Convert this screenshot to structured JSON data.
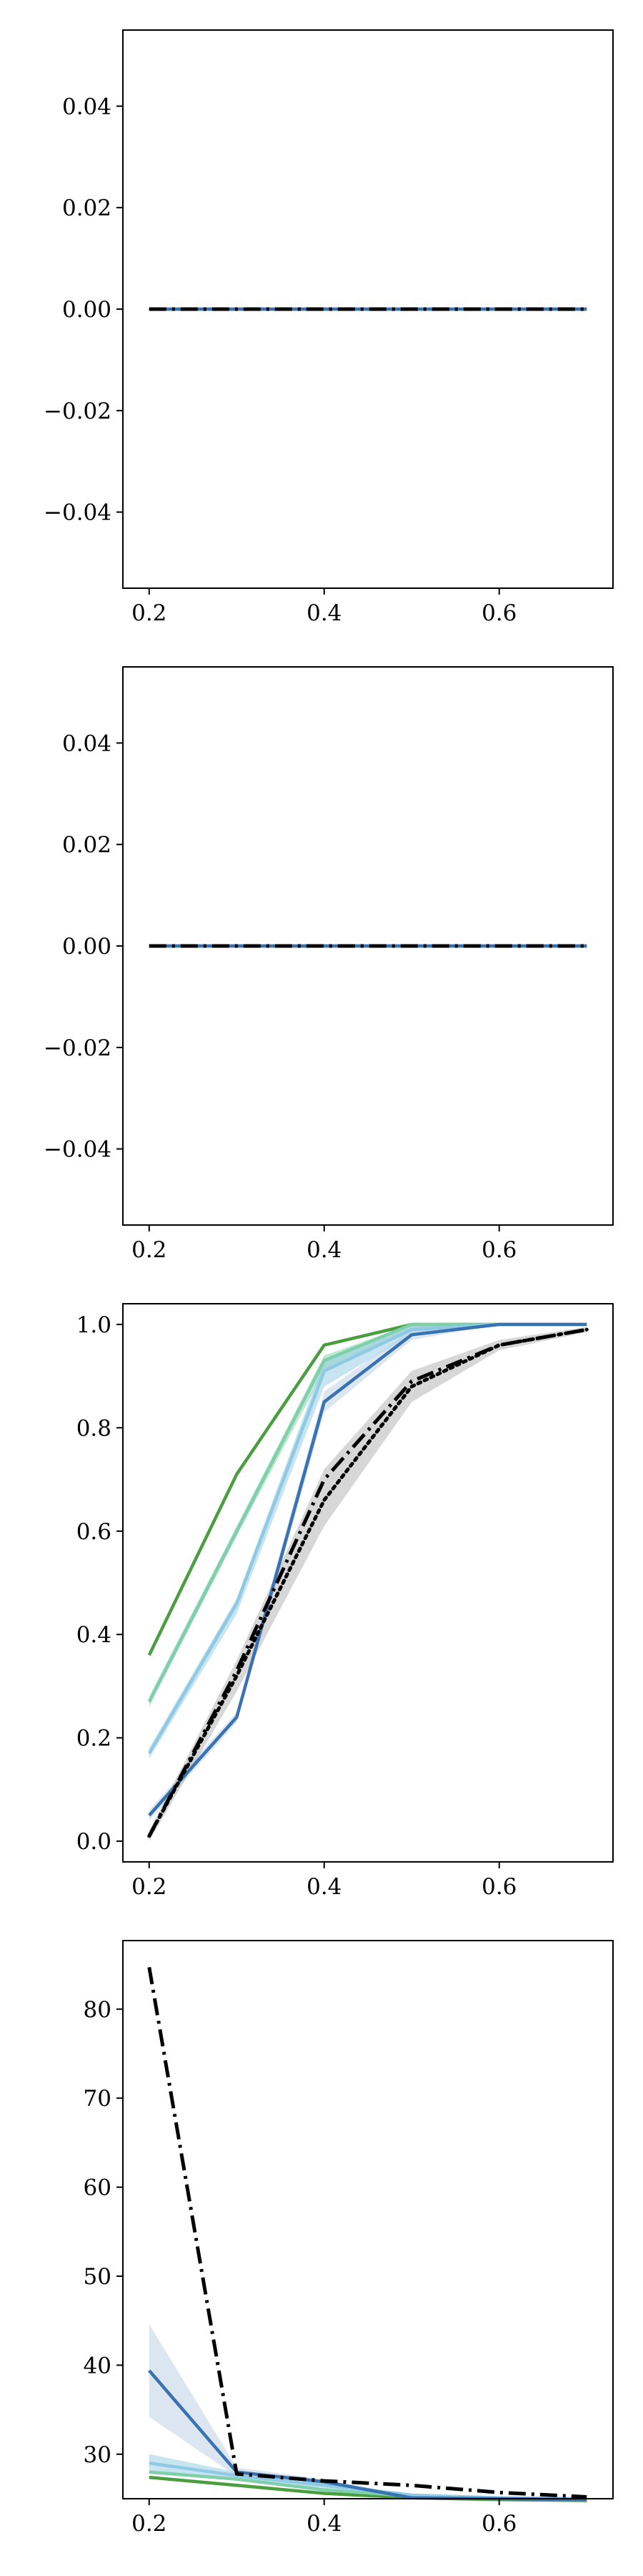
{
  "colors": {
    "green": "#4a9e3f",
    "teal": "#7ecfaa",
    "lightblue": "#8fc9e4",
    "blue": "#3872b2",
    "black": "#000000",
    "band_blue": "#b8cde4",
    "band_gray": "#b0b0b0"
  },
  "chart_data": [
    {
      "type": "line",
      "x": [
        0.2,
        0.3,
        0.4,
        0.5,
        0.6,
        0.7
      ],
      "xlim": [
        0.17,
        0.73
      ],
      "ylim": [
        -0.055,
        0.055
      ],
      "xticks": [
        0.2,
        0.4,
        0.6
      ],
      "xtick_labels": [
        "0.2",
        "0.4",
        "0.6"
      ],
      "yticks": [
        0.04,
        0.02,
        0.0,
        -0.02,
        -0.04
      ],
      "ytick_labels": [
        "0.04",
        "0.02",
        "0.00",
        "−0.02",
        "−0.04"
      ],
      "grid": false,
      "series": [
        {
          "color": "green",
          "style": "solid",
          "values": [
            0,
            0,
            0,
            0,
            0,
            0
          ]
        },
        {
          "color": "teal",
          "style": "solid",
          "values": [
            0,
            0,
            0,
            0,
            0,
            0
          ]
        },
        {
          "color": "lightblue",
          "style": "solid",
          "values": [
            0,
            0,
            0,
            0,
            0,
            0
          ]
        },
        {
          "color": "blue",
          "style": "solid",
          "values": [
            0,
            0,
            0,
            0,
            0,
            0
          ]
        },
        {
          "color": "black",
          "style": "dashdot",
          "values": [
            0,
            0,
            0,
            0,
            0,
            0
          ]
        }
      ]
    },
    {
      "type": "line",
      "x": [
        0.2,
        0.3,
        0.4,
        0.5,
        0.6,
        0.7
      ],
      "xlim": [
        0.17,
        0.73
      ],
      "ylim": [
        -0.055,
        0.055
      ],
      "xticks": [
        0.2,
        0.4,
        0.6
      ],
      "xtick_labels": [
        "0.2",
        "0.4",
        "0.6"
      ],
      "yticks": [
        0.04,
        0.02,
        0.0,
        -0.02,
        -0.04
      ],
      "ytick_labels": [
        "0.04",
        "0.02",
        "0.00",
        "−0.02",
        "−0.04"
      ],
      "grid": false,
      "series": [
        {
          "color": "green",
          "style": "solid",
          "values": [
            0,
            0,
            0,
            0,
            0,
            0
          ]
        },
        {
          "color": "teal",
          "style": "solid",
          "values": [
            0,
            0,
            0,
            0,
            0,
            0
          ]
        },
        {
          "color": "lightblue",
          "style": "solid",
          "values": [
            0,
            0,
            0,
            0,
            0,
            0
          ]
        },
        {
          "color": "blue",
          "style": "solid",
          "values": [
            0,
            0,
            0,
            0,
            0,
            0
          ]
        },
        {
          "color": "black",
          "style": "dashdot",
          "values": [
            0,
            0,
            0,
            0,
            0,
            0
          ]
        }
      ]
    },
    {
      "type": "line",
      "x": [
        0.2,
        0.3,
        0.4,
        0.5,
        0.6,
        0.7
      ],
      "xlim": [
        0.17,
        0.73
      ],
      "ylim": [
        -0.04,
        1.04
      ],
      "xticks": [
        0.2,
        0.4,
        0.6
      ],
      "xtick_labels": [
        "0.2",
        "0.4",
        "0.6"
      ],
      "yticks": [
        1.0,
        0.8,
        0.6,
        0.4,
        0.2,
        0.0
      ],
      "ytick_labels": [
        "1.0",
        "0.8",
        "0.6",
        "0.4",
        "0.2",
        "0.0"
      ],
      "grid": false,
      "series": [
        {
          "color": "green",
          "style": "solid",
          "values": [
            0.36,
            0.71,
            0.96,
            1.0,
            1.0,
            1.0
          ]
        },
        {
          "color": "teal",
          "style": "solid",
          "values": [
            0.27,
            0.6,
            0.93,
            1.0,
            1.0,
            1.0
          ],
          "band_upper": [
            0.28,
            0.61,
            0.94,
            1.0,
            1.0,
            1.0
          ],
          "band_lower": [
            0.26,
            0.59,
            0.91,
            0.99,
            1.0,
            1.0
          ],
          "band_color": "teal"
        },
        {
          "color": "lightblue",
          "style": "solid",
          "values": [
            0.17,
            0.46,
            0.91,
            0.99,
            1.0,
            1.0
          ],
          "band_upper": [
            0.18,
            0.47,
            0.93,
            1.0,
            1.0,
            1.0
          ],
          "band_lower": [
            0.16,
            0.44,
            0.88,
            0.98,
            1.0,
            1.0
          ],
          "band_color": "lightblue"
        },
        {
          "color": "blue",
          "style": "solid",
          "values": [
            0.05,
            0.24,
            0.85,
            0.98,
            1.0,
            1.0
          ],
          "band_upper": [
            0.06,
            0.25,
            0.87,
            0.99,
            1.0,
            1.0
          ],
          "band_lower": [
            0.04,
            0.23,
            0.83,
            0.97,
            1.0,
            1.0
          ],
          "band_color": "band_blue"
        },
        {
          "color": "black",
          "style": "dotted",
          "values": [
            0.01,
            0.32,
            0.66,
            0.88,
            0.96,
            0.99
          ],
          "band_upper": [
            0.02,
            0.35,
            0.72,
            0.91,
            0.97,
            0.995
          ],
          "band_lower": [
            0.0,
            0.29,
            0.61,
            0.85,
            0.95,
            0.985
          ],
          "band_color": "band_gray"
        },
        {
          "color": "black",
          "style": "dashdot",
          "values": [
            0.01,
            0.33,
            0.7,
            0.89,
            0.96,
            0.99
          ]
        }
      ]
    },
    {
      "type": "line",
      "x": [
        0.2,
        0.3,
        0.4,
        0.5,
        0.6,
        0.7
      ],
      "xlim": [
        0.17,
        0.73
      ],
      "ylim": [
        25.0,
        87.7
      ],
      "xticks": [
        0.2,
        0.4,
        0.6
      ],
      "xtick_labels": [
        "0.2",
        "0.4",
        "0.6"
      ],
      "yticks": [
        80,
        70,
        60,
        50,
        40,
        30
      ],
      "ytick_labels": [
        "80",
        "70",
        "60",
        "50",
        "40",
        "30"
      ],
      "grid": false,
      "series": [
        {
          "color": "green",
          "style": "solid",
          "values": [
            27.4,
            26.5,
            25.6,
            25.1,
            24.9,
            24.8
          ]
        },
        {
          "color": "teal",
          "style": "solid",
          "values": [
            28.0,
            27.2,
            26.0,
            25.3,
            25.0,
            24.9
          ]
        },
        {
          "color": "lightblue",
          "style": "solid",
          "values": [
            29.0,
            27.6,
            26.5,
            25.4,
            25.1,
            25.0
          ],
          "band_upper": [
            30.0,
            28.0,
            26.8,
            25.6,
            25.2,
            25.1
          ],
          "band_lower": [
            28.0,
            27.2,
            26.2,
            25.2,
            25.0,
            24.9
          ],
          "band_color": "lightblue"
        },
        {
          "color": "blue",
          "style": "solid",
          "values": [
            39.4,
            28.0,
            26.9,
            25.1,
            25.0,
            24.9
          ],
          "band_upper": [
            44.6,
            28.5,
            27.2,
            25.3,
            25.1,
            25.0
          ],
          "band_lower": [
            34.2,
            27.5,
            26.6,
            24.9,
            24.9,
            24.8
          ],
          "band_color": "band_blue"
        },
        {
          "color": "black",
          "style": "dashdot",
          "values": [
            84.7,
            27.8,
            27.0,
            26.5,
            25.7,
            25.2
          ]
        }
      ]
    }
  ]
}
